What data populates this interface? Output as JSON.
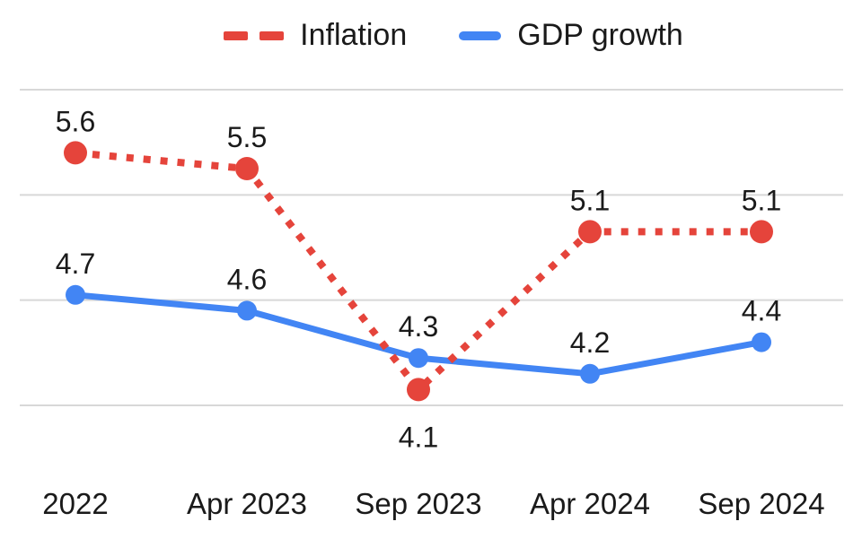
{
  "chart_data": {
    "type": "line",
    "categories": [
      "2022",
      "Apr 2023",
      "Sep 2023",
      "Apr 2024",
      "Sep 2024"
    ],
    "series": [
      {
        "name": "Inflation",
        "color": "#e5443b",
        "line_style": "dotted",
        "values": [
          5.6,
          5.5,
          4.1,
          5.1,
          5.1
        ],
        "label_side": [
          "above",
          "above",
          "below",
          "above",
          "above"
        ]
      },
      {
        "name": "GDP growth",
        "color": "#4285f4",
        "line_style": "solid",
        "values": [
          4.7,
          4.6,
          4.3,
          4.2,
          4.4
        ],
        "label_side": [
          "above",
          "above",
          "above",
          "above",
          "above"
        ]
      }
    ],
    "title": "",
    "xlabel": "",
    "ylabel": "",
    "ylim": [
      4.0,
      6.0
    ],
    "gridline_values": [
      4.0,
      4.6667,
      5.3333,
      6.0
    ],
    "grid": true,
    "legend_position": "top",
    "colors": {
      "grid": "#d8d8d8",
      "text": "#1a1a1a"
    }
  }
}
